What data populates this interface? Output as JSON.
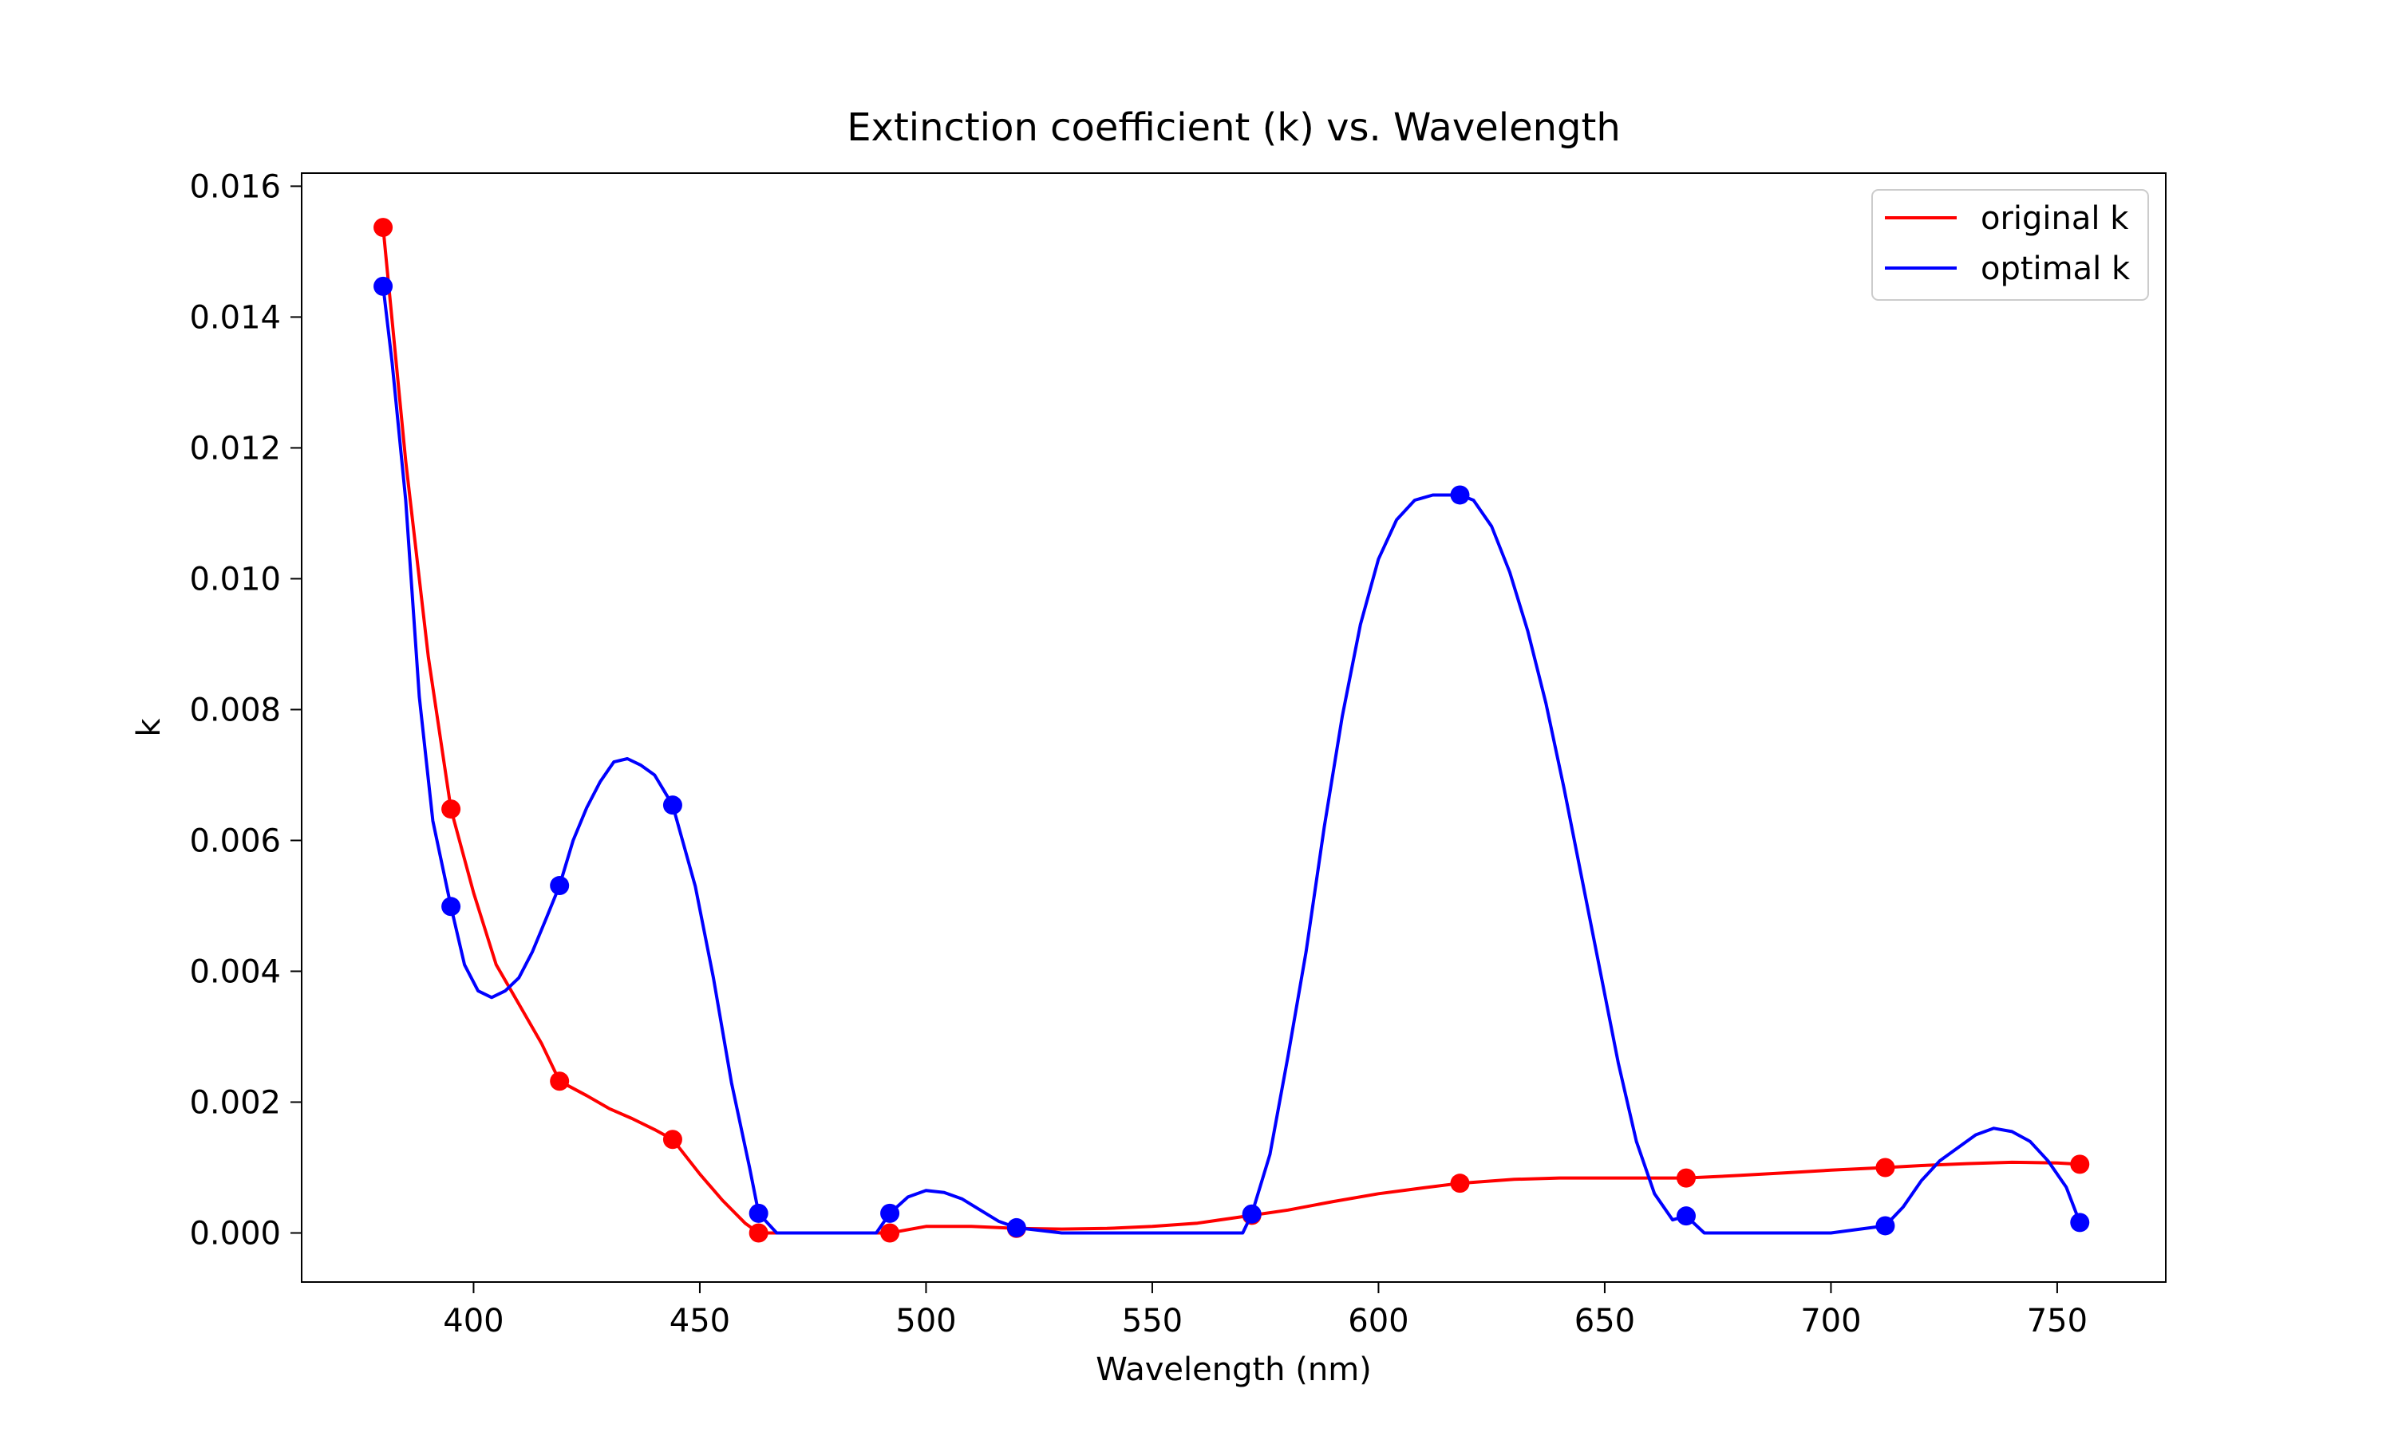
{
  "chart_data": {
    "type": "line",
    "title": "Extinction coefficient (k) vs. Wavelength",
    "xlabel": "Wavelength (nm)",
    "ylabel": "k",
    "xlim": [
      362,
      774
    ],
    "ylim": [
      -0.00075,
      0.0162
    ],
    "xticks": [
      400,
      450,
      500,
      550,
      600,
      650,
      700,
      750
    ],
    "yticks": [
      0.0,
      0.002,
      0.004,
      0.006,
      0.008,
      0.01,
      0.012,
      0.014,
      0.016
    ],
    "ytick_labels": [
      "0.000",
      "0.002",
      "0.004",
      "0.006",
      "0.008",
      "0.010",
      "0.012",
      "0.014",
      "0.016"
    ],
    "grid": false,
    "legend_position": "top-right",
    "series": [
      {
        "name": "original k",
        "color": "#ff0000",
        "markers": {
          "x": [
            380,
            395,
            419,
            444,
            463,
            492,
            520,
            572,
            618,
            668,
            712,
            755
          ],
          "y": [
            0.01537,
            0.00648,
            0.00232,
            0.00143,
            0.0,
            0.0,
            7e-05,
            0.00027,
            0.00076,
            0.00084,
            0.001,
            0.00105
          ]
        },
        "curve": {
          "x": [
            380,
            385,
            390,
            395,
            400,
            405,
            410,
            415,
            419,
            425,
            430,
            435,
            440,
            444,
            450,
            455,
            460,
            463,
            470,
            480,
            492,
            500,
            510,
            520,
            530,
            540,
            550,
            560,
            572,
            580,
            590,
            600,
            610,
            618,
            630,
            640,
            650,
            660,
            668,
            680,
            690,
            700,
            712,
            720,
            730,
            740,
            750,
            755
          ],
          "y": [
            0.01537,
            0.0118,
            0.0088,
            0.00648,
            0.0052,
            0.0041,
            0.0035,
            0.0029,
            0.00232,
            0.0021,
            0.0019,
            0.00175,
            0.00158,
            0.00143,
            0.0009,
            0.0005,
            0.00015,
            0.0,
            0.0,
            0.0,
            0.0,
            0.0001,
            0.0001,
            7e-05,
            6e-05,
            7e-05,
            0.0001,
            0.00015,
            0.00027,
            0.00035,
            0.00048,
            0.0006,
            0.00069,
            0.00076,
            0.00082,
            0.00084,
            0.00084,
            0.00084,
            0.00084,
            0.00088,
            0.00092,
            0.00096,
            0.001,
            0.00103,
            0.00106,
            0.00108,
            0.00107,
            0.00105
          ]
        }
      },
      {
        "name": "optimal k",
        "color": "#0000ff",
        "markers": {
          "x": [
            380,
            395,
            419,
            444,
            463,
            492,
            520,
            572,
            618,
            668,
            712,
            755
          ],
          "y": [
            0.01447,
            0.00499,
            0.00531,
            0.00654,
            0.0003,
            0.0003,
            8e-05,
            0.00029,
            0.01128,
            0.00026,
            0.00011,
            0.00016
          ]
        },
        "curve": {
          "x": [
            380,
            382,
            385,
            388,
            391,
            395,
            398,
            401,
            404,
            407,
            410,
            413,
            416,
            419,
            422,
            425,
            428,
            431,
            434,
            437,
            440,
            444,
            449,
            453,
            457,
            461,
            463,
            467,
            475,
            485,
            489,
            492,
            496,
            500,
            504,
            508,
            512,
            516,
            520,
            530,
            550,
            570,
            572,
            576,
            580,
            584,
            588,
            592,
            596,
            600,
            604,
            608,
            612,
            616,
            618,
            621,
            625,
            629,
            633,
            637,
            641,
            645,
            649,
            653,
            657,
            661,
            665,
            668,
            672,
            680,
            700,
            712,
            716,
            720,
            724,
            728,
            732,
            736,
            740,
            744,
            748,
            752,
            755
          ],
          "y": [
            0.01447,
            0.0133,
            0.0112,
            0.0082,
            0.0063,
            0.00499,
            0.0041,
            0.0037,
            0.0036,
            0.0037,
            0.0039,
            0.0043,
            0.0048,
            0.00531,
            0.006,
            0.0065,
            0.0069,
            0.0072,
            0.00725,
            0.00715,
            0.007,
            0.00654,
            0.0053,
            0.0039,
            0.0023,
            0.001,
            0.0003,
            0.0,
            0.0,
            0.0,
            0.0,
            0.0003,
            0.00055,
            0.00065,
            0.00062,
            0.00052,
            0.00035,
            0.00018,
            8e-05,
            0.0,
            0.0,
            0.0,
            0.00029,
            0.0012,
            0.0027,
            0.0043,
            0.0062,
            0.0079,
            0.0093,
            0.0103,
            0.0109,
            0.0112,
            0.01128,
            0.01128,
            0.01128,
            0.0112,
            0.0108,
            0.0101,
            0.0092,
            0.0081,
            0.0068,
            0.0054,
            0.004,
            0.0026,
            0.0014,
            0.0006,
            0.0002,
            0.00026,
            0.0,
            0.0,
            0.0,
            0.00011,
            0.0004,
            0.0008,
            0.0011,
            0.0013,
            0.0015,
            0.0016,
            0.00155,
            0.0014,
            0.0011,
            0.0007,
            0.00016
          ]
        }
      }
    ]
  }
}
